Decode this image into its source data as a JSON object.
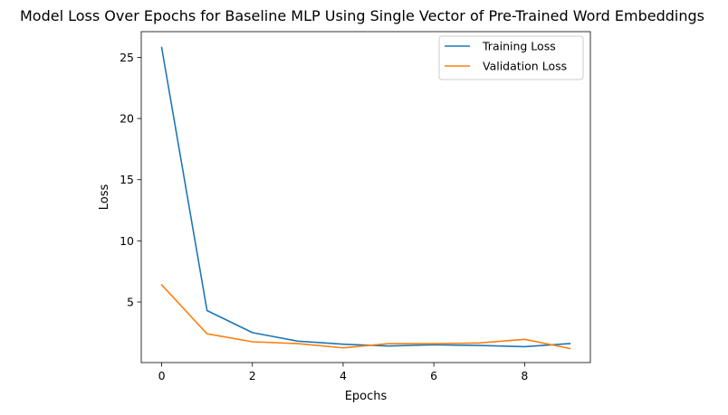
{
  "chart_data": {
    "type": "line",
    "title": "Model Loss Over Epochs for Baseline MLP Using Single Vector of Pre-Trained Word Embeddings",
    "xlabel": "Epochs",
    "ylabel": "Loss",
    "xlim": [
      -0.45,
      9.45
    ],
    "ylim": [
      0.05,
      27.1
    ],
    "xticks": [
      0,
      2,
      4,
      6,
      8
    ],
    "yticks": [
      5,
      10,
      15,
      20,
      25
    ],
    "grid": false,
    "legend_position": "top-right",
    "x": [
      0,
      1,
      2,
      3,
      4,
      5,
      6,
      7,
      8,
      9
    ],
    "series": [
      {
        "name": "Training Loss",
        "color": "#1f77b4",
        "values": [
          25.8,
          4.3,
          2.5,
          1.8,
          1.55,
          1.4,
          1.5,
          1.45,
          1.35,
          1.6
        ]
      },
      {
        "name": "Validation Loss",
        "color": "#ff7f0e",
        "values": [
          6.4,
          2.4,
          1.75,
          1.6,
          1.25,
          1.6,
          1.6,
          1.65,
          1.95,
          1.2
        ]
      }
    ]
  }
}
